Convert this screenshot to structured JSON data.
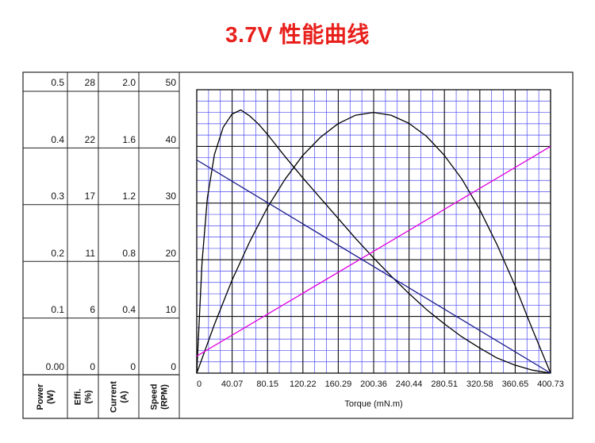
{
  "title": "3.7V 性能曲线",
  "chart_data": {
    "type": "line",
    "title": "3.7V 性能曲线",
    "xlabel": "Torque (mN.m)",
    "x_ticks": [
      "0",
      "40.07",
      "80.15",
      "120.22",
      "160.29",
      "200.36",
      "240.44",
      "280.51",
      "320.58",
      "360.65",
      "400.73"
    ],
    "xlim": [
      0,
      400.73
    ],
    "grid": true,
    "y_axes": [
      {
        "name": "Power",
        "unit": "(W)",
        "ticks": [
          "0.00",
          "0.1",
          "0.2",
          "0.3",
          "0.4",
          "0.5"
        ],
        "range": [
          0,
          0.5
        ]
      },
      {
        "name": "Effi.",
        "unit": "(%)",
        "ticks": [
          "0",
          "6",
          "11",
          "17",
          "22",
          "28"
        ],
        "range": [
          0,
          28
        ]
      },
      {
        "name": "Current",
        "unit": "(A)",
        "ticks": [
          "0",
          "0.4",
          "0.8",
          "1.2",
          "1.6",
          "2.0"
        ],
        "range": [
          0,
          2.0
        ]
      },
      {
        "name": "Speed",
        "unit": "(RPM)",
        "ticks": [
          "0",
          "10",
          "20",
          "30",
          "40",
          "50"
        ],
        "range": [
          0,
          50
        ]
      }
    ],
    "series": [
      {
        "axis": 0,
        "color": "#000000",
        "points": [
          [
            0,
            0
          ],
          [
            20,
            0.086
          ],
          [
            40,
            0.164
          ],
          [
            60,
            0.232
          ],
          [
            80,
            0.292
          ],
          [
            100,
            0.342
          ],
          [
            120,
            0.384
          ],
          [
            140,
            0.416
          ],
          [
            160,
            0.44
          ],
          [
            180,
            0.455
          ],
          [
            200,
            0.46
          ],
          [
            220,
            0.455
          ],
          [
            240,
            0.441
          ],
          [
            260,
            0.418
          ],
          [
            280,
            0.385
          ],
          [
            300,
            0.343
          ],
          [
            320,
            0.29
          ],
          [
            340,
            0.227
          ],
          [
            360,
            0.156
          ],
          [
            380,
            0.078
          ],
          [
            400.73,
            0
          ]
        ]
      },
      {
        "axis": 1,
        "color": "#000000",
        "points": [
          [
            0,
            0
          ],
          [
            6,
            11.0
          ],
          [
            12,
            17.3
          ],
          [
            20,
            21.6
          ],
          [
            30,
            24.3
          ],
          [
            40,
            25.6
          ],
          [
            50,
            26.0
          ],
          [
            60,
            25.4
          ],
          [
            70,
            24.6
          ],
          [
            80,
            23.6
          ],
          [
            90,
            22.5
          ],
          [
            100,
            21.4
          ],
          [
            120,
            19.3
          ],
          [
            140,
            17.3
          ],
          [
            160,
            15.3
          ],
          [
            180,
            13.3
          ],
          [
            200,
            11.4
          ],
          [
            220,
            9.6
          ],
          [
            240,
            7.9
          ],
          [
            260,
            6.3
          ],
          [
            280,
            4.9
          ],
          [
            300,
            3.6
          ],
          [
            320,
            2.5
          ],
          [
            340,
            1.5
          ],
          [
            360,
            0.8
          ],
          [
            380,
            0.3
          ],
          [
            400.73,
            0
          ]
        ]
      },
      {
        "axis": 2,
        "color": "#e000e0",
        "points": [
          [
            0,
            0.12
          ],
          [
            400.73,
            1.6
          ]
        ]
      },
      {
        "axis": 3,
        "color": "#1a1a8c",
        "points": [
          [
            0,
            37.6
          ],
          [
            400.73,
            0
          ]
        ]
      }
    ]
  }
}
